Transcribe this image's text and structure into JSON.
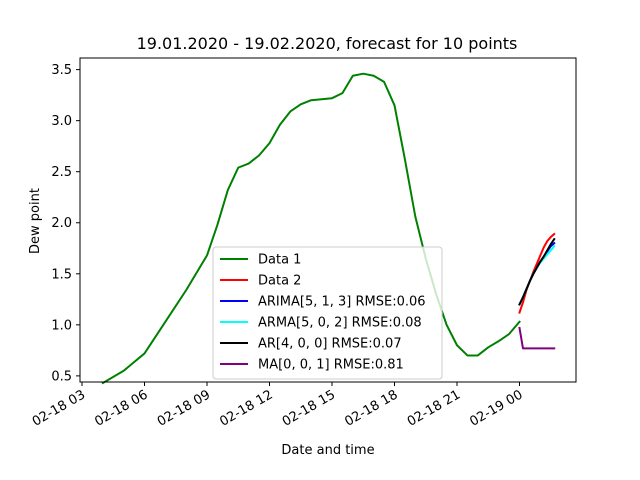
{
  "chart_data": {
    "type": "line",
    "title": "19.01.2020 - 19.02.2020, forecast for 10 points",
    "xlabel": "Date and time",
    "ylabel": "Dew point",
    "x_unit": "hours",
    "xlim": [
      "02-18 03:00",
      "02-19 03:00"
    ],
    "ylim": [
      0.35,
      3.6
    ],
    "x_ticks": [
      "02-18 03",
      "02-18 06",
      "02-18 09",
      "02-18 12",
      "02-18 15",
      "02-18 18",
      "02-18 21",
      "02-19 00"
    ],
    "y_ticks": [
      "0.5",
      "1.0",
      "1.5",
      "2.0",
      "2.5",
      "3.0",
      "3.5"
    ],
    "legend_position": "lower-center",
    "series": [
      {
        "name": "Data 1",
        "color": "#008000",
        "x": [
          "02-18 04:00",
          "02-18 05:00",
          "02-18 06:00",
          "02-18 07:00",
          "02-18 08:00",
          "02-18 09:00",
          "02-18 09:30",
          "02-18 10:00",
          "02-18 10:30",
          "02-18 11:00",
          "02-18 11:30",
          "02-18 12:00",
          "02-18 12:30",
          "02-18 13:00",
          "02-18 13:30",
          "02-18 14:00",
          "02-18 14:30",
          "02-18 15:00",
          "02-18 15:30",
          "02-18 16:00",
          "02-18 16:30",
          "02-18 17:00",
          "02-18 17:30",
          "02-18 18:00",
          "02-18 18:30",
          "02-18 19:00",
          "02-18 19:30",
          "02-18 20:00",
          "02-18 20:30",
          "02-18 21:00",
          "02-18 21:30",
          "02-18 22:00",
          "02-18 22:30",
          "02-18 23:00",
          "02-18 23:30",
          "02-19 00:00"
        ],
        "y": [
          0.43,
          0.55,
          0.72,
          1.03,
          1.34,
          1.68,
          1.98,
          2.32,
          2.54,
          2.58,
          2.66,
          2.78,
          2.96,
          3.09,
          3.16,
          3.2,
          3.21,
          3.22,
          3.27,
          3.44,
          3.46,
          3.44,
          3.38,
          3.15,
          2.62,
          2.06,
          1.65,
          1.3,
          1.0,
          0.8,
          0.7,
          0.7,
          0.78,
          0.84,
          0.91,
          1.03
        ]
      },
      {
        "name": "Data 2",
        "color": "#ff0000",
        "x": [
          "02-19 00:00",
          "02-19 00:10",
          "02-19 00:20",
          "02-19 00:30",
          "02-19 00:40",
          "02-19 00:50",
          "02-19 01:00",
          "02-19 01:10",
          "02-19 01:20",
          "02-19 01:30",
          "02-19 01:40"
        ],
        "y": [
          1.12,
          1.22,
          1.34,
          1.43,
          1.52,
          1.6,
          1.68,
          1.76,
          1.82,
          1.86,
          1.89
        ]
      },
      {
        "name": "ARIMA[5, 1, 3] RMSE:0.06",
        "color": "#0000ff",
        "x": [
          "02-19 00:00",
          "02-19 00:10",
          "02-19 00:20",
          "02-19 00:30",
          "02-19 00:40",
          "02-19 00:50",
          "02-19 01:00",
          "02-19 01:10",
          "02-19 01:20",
          "02-19 01:30",
          "02-19 01:40"
        ],
        "y": [
          1.2,
          1.27,
          1.35,
          1.43,
          1.5,
          1.56,
          1.62,
          1.67,
          1.72,
          1.77,
          1.8
        ]
      },
      {
        "name": "ARMA[5, 0, 2] RMSE:0.08",
        "color": "#00ffff",
        "x": [
          "02-19 00:00",
          "02-19 00:10",
          "02-19 00:20",
          "02-19 00:30",
          "02-19 00:40",
          "02-19 00:50",
          "02-19 01:00",
          "02-19 01:10",
          "02-19 01:20",
          "02-19 01:30",
          "02-19 01:40"
        ],
        "y": [
          1.2,
          1.27,
          1.35,
          1.43,
          1.5,
          1.56,
          1.61,
          1.65,
          1.69,
          1.73,
          1.77
        ]
      },
      {
        "name": "AR[4, 0, 0] RMSE:0.07",
        "color": "#000000",
        "x": [
          "02-19 00:00",
          "02-19 00:10",
          "02-19 00:20",
          "02-19 00:30",
          "02-19 00:40",
          "02-19 00:50",
          "02-19 01:00",
          "02-19 01:10",
          "02-19 01:20",
          "02-19 01:30",
          "02-19 01:40"
        ],
        "y": [
          1.2,
          1.27,
          1.35,
          1.43,
          1.5,
          1.56,
          1.62,
          1.67,
          1.73,
          1.79,
          1.84
        ]
      },
      {
        "name": "MA[0, 0, 1] RMSE:0.81",
        "color": "#800080",
        "x": [
          "02-19 00:00",
          "02-19 00:10",
          "02-19 00:20",
          "02-19 00:30",
          "02-19 00:40",
          "02-19 00:50",
          "02-19 01:00",
          "02-19 01:10",
          "02-19 01:20",
          "02-19 01:30",
          "02-19 01:40"
        ],
        "y": [
          0.97,
          0.77,
          0.77,
          0.77,
          0.77,
          0.77,
          0.77,
          0.77,
          0.77,
          0.77,
          0.77
        ]
      }
    ]
  }
}
